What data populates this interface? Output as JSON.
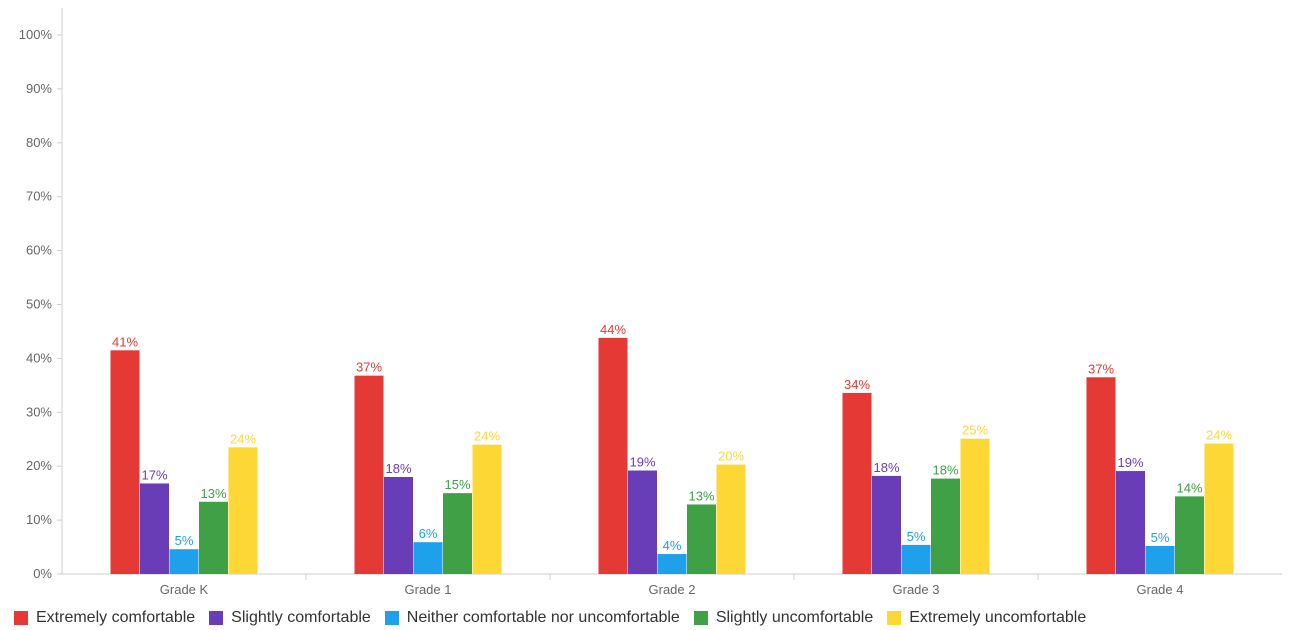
{
  "chart_data": {
    "type": "bar",
    "title": "",
    "xlabel": "",
    "ylabel": "",
    "categories": [
      "Grade K",
      "Grade 1",
      "Grade 2",
      "Grade 3",
      "Grade 4"
    ],
    "ylim": [
      0,
      100
    ],
    "y_ticks": [
      "0%",
      "10%",
      "20%",
      "30%",
      "40%",
      "50%",
      "60%",
      "70%",
      "80%",
      "90%",
      "100%"
    ],
    "y_tick_values": [
      0,
      10,
      20,
      30,
      40,
      50,
      60,
      70,
      80,
      90,
      100
    ],
    "grid": false,
    "legend_position": "bottom-left",
    "series": [
      {
        "name": "Extremely comfortable",
        "color": "#e53935",
        "values": [
          41.5,
          36.8,
          43.8,
          33.6,
          36.5
        ],
        "labels": [
          "41%",
          "37%",
          "44%",
          "34%",
          "37%"
        ]
      },
      {
        "name": "Slightly comfortable",
        "color": "#6a3db8",
        "values": [
          16.8,
          18.0,
          19.2,
          18.2,
          19.1
        ],
        "labels": [
          "17%",
          "18%",
          "19%",
          "18%",
          "19%"
        ]
      },
      {
        "name": "Neither comfortable nor uncomfortable",
        "color": "#1ea0ea",
        "values": [
          4.6,
          5.9,
          3.7,
          5.4,
          5.2
        ],
        "labels": [
          "5%",
          "6%",
          "4%",
          "5%",
          "5%"
        ]
      },
      {
        "name": "Slightly uncomfortable",
        "color": "#3fa046",
        "values": [
          13.4,
          15.0,
          12.9,
          17.7,
          14.4
        ],
        "labels": [
          "13%",
          "15%",
          "13%",
          "18%",
          "14%"
        ]
      },
      {
        "name": "Extremely uncomfortable",
        "color": "#fdd835",
        "values": [
          23.5,
          24.0,
          20.3,
          25.1,
          24.2
        ],
        "labels": [
          "24%",
          "24%",
          "20%",
          "25%",
          "24%"
        ]
      }
    ]
  }
}
